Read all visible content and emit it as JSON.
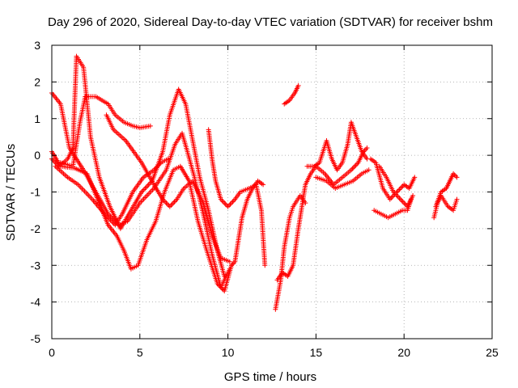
{
  "chart_data": {
    "type": "scatter",
    "title": "Day 296 of 2020, Sidereal Day-to-day VTEC variation (SDTVAR) for receiver bshm",
    "xlabel": "GPS time / hours",
    "ylabel": "SDTVAR / TECUs",
    "xlim": [
      0,
      25
    ],
    "ylim": [
      -5,
      3
    ],
    "x_ticks": [
      "0",
      "5",
      "10",
      "15",
      "20",
      "25"
    ],
    "y_ticks": [
      "-5",
      "-4",
      "-3",
      "-2",
      "-1",
      "0",
      "1",
      "2",
      "3"
    ],
    "grid": true,
    "marker": "plus",
    "color": "#ff0000",
    "series": [
      {
        "segments": [
          [
            [
              0.0,
              1.7
            ],
            [
              0.5,
              1.4
            ],
            [
              1.0,
              0.2
            ],
            [
              1.8,
              -0.4
            ],
            [
              2.5,
              -1.0
            ],
            [
              3.2,
              -1.6
            ],
            [
              3.8,
              -1.9
            ],
            [
              4.3,
              -1.8
            ],
            [
              5.0,
              -1.3
            ],
            [
              5.8,
              -0.9
            ],
            [
              6.5,
              -0.4
            ],
            [
              7.0,
              0.3
            ],
            [
              7.4,
              0.6
            ],
            [
              7.7,
              0.1
            ],
            [
              8.1,
              -0.6
            ],
            [
              8.6,
              -1.6
            ],
            [
              9.1,
              -2.7
            ],
            [
              9.6,
              -3.6
            ],
            [
              10.1,
              -3.1
            ]
          ]
        ]
      },
      {
        "segments": [
          [
            [
              0.0,
              0.1
            ],
            [
              0.5,
              -0.3
            ],
            [
              1.3,
              -0.35
            ],
            [
              2.0,
              -0.5
            ],
            [
              2.6,
              -1.2
            ],
            [
              3.2,
              -1.9
            ],
            [
              3.7,
              -2.2
            ],
            [
              4.1,
              -2.6
            ],
            [
              4.5,
              -3.1
            ],
            [
              4.9,
              -3.0
            ],
            [
              5.4,
              -2.3
            ],
            [
              5.9,
              -1.8
            ],
            [
              6.4,
              -1.0
            ],
            [
              6.9,
              -0.4
            ],
            [
              7.3,
              -0.3
            ],
            [
              7.8,
              -0.7
            ],
            [
              8.3,
              -1.8
            ],
            [
              8.8,
              -2.6
            ],
            [
              9.4,
              -3.5
            ],
            [
              9.8,
              -3.7
            ],
            [
              10.2,
              -3.0
            ]
          ]
        ]
      },
      {
        "segments": [
          [
            [
              0.0,
              -0.1
            ],
            [
              0.4,
              -0.3
            ],
            [
              0.9,
              -0.1
            ],
            [
              1.2,
              0.2
            ],
            [
              1.4,
              2.7
            ],
            [
              1.8,
              2.4
            ],
            [
              2.2,
              0.5
            ],
            [
              2.7,
              -0.6
            ],
            [
              3.3,
              -1.4
            ],
            [
              3.9,
              -2.0
            ],
            [
              4.5,
              -1.5
            ],
            [
              5.1,
              -1.0
            ],
            [
              5.7,
              -0.7
            ],
            [
              6.3,
              0.1
            ],
            [
              6.7,
              1.1
            ],
            [
              7.2,
              1.8
            ],
            [
              7.6,
              1.4
            ],
            [
              8.0,
              0.4
            ],
            [
              8.4,
              -0.6
            ],
            [
              8.9,
              -1.5
            ],
            [
              9.4,
              -2.6
            ],
            [
              9.8,
              -3.3
            ]
          ]
        ]
      },
      {
        "segments": [
          [
            [
              0.5,
              -0.2
            ],
            [
              1.2,
              -0.3
            ],
            [
              1.6,
              0.9
            ],
            [
              1.9,
              1.6
            ],
            [
              2.5,
              1.6
            ],
            [
              3.2,
              1.4
            ],
            [
              3.6,
              1.1
            ],
            [
              4.1,
              0.9
            ],
            [
              4.6,
              0.8
            ],
            [
              5.0,
              0.75
            ],
            [
              5.6,
              0.8
            ]
          ]
        ]
      },
      {
        "segments": [
          [
            [
              3.1,
              1.1
            ],
            [
              3.5,
              0.7
            ],
            [
              4.2,
              0.4
            ],
            [
              5.1,
              -0.2
            ],
            [
              5.8,
              -0.8
            ],
            [
              6.3,
              -1.2
            ],
            [
              6.7,
              -1.4
            ],
            [
              7.1,
              -1.2
            ],
            [
              7.5,
              -0.9
            ],
            [
              8.0,
              -0.7
            ],
            [
              8.6,
              -1.3
            ],
            [
              9.1,
              -2.2
            ],
            [
              9.6,
              -2.8
            ],
            [
              10.1,
              -2.9
            ]
          ]
        ]
      },
      {
        "segments": [
          [
            [
              0.2,
              -0.3
            ],
            [
              0.9,
              -0.6
            ],
            [
              1.5,
              -0.8
            ],
            [
              2.3,
              -1.2
            ],
            [
              3.0,
              -1.6
            ],
            [
              3.6,
              -1.9
            ],
            [
              4.0,
              -1.6
            ],
            [
              4.6,
              -1.0
            ],
            [
              5.2,
              -0.6
            ],
            [
              5.8,
              -0.4
            ],
            [
              6.2,
              -0.2
            ],
            [
              6.6,
              -0.1
            ]
          ]
        ]
      },
      {
        "segments": [
          [
            [
              8.9,
              0.7
            ],
            [
              9.1,
              -0.1
            ],
            [
              9.3,
              -0.7
            ],
            [
              9.6,
              -1.2
            ],
            [
              10.0,
              -1.4
            ],
            [
              10.4,
              -1.2
            ],
            [
              10.7,
              -1.0
            ],
            [
              11.2,
              -0.9
            ],
            [
              11.6,
              -0.8
            ],
            [
              11.9,
              -1.5
            ],
            [
              12.1,
              -3.0
            ]
          ]
        ]
      },
      {
        "segments": [
          [
            [
              12.0,
              -0.8
            ],
            [
              11.7,
              -0.7
            ],
            [
              11.4,
              -0.9
            ],
            [
              11.1,
              -1.2
            ],
            [
              10.8,
              -1.7
            ],
            [
              10.6,
              -2.3
            ],
            [
              10.4,
              -2.9
            ],
            [
              10.2,
              -3.0
            ]
          ]
        ]
      },
      {
        "segments": [
          [
            [
              12.7,
              -4.2
            ],
            [
              13.0,
              -3.4
            ],
            [
              13.2,
              -2.5
            ],
            [
              13.5,
              -1.7
            ],
            [
              13.7,
              -1.4
            ],
            [
              14.1,
              -1.1
            ],
            [
              14.4,
              -1.3
            ]
          ]
        ]
      },
      {
        "segments": [
          [
            [
              12.8,
              -3.4
            ],
            [
              13.1,
              -3.2
            ],
            [
              13.4,
              -3.3
            ],
            [
              13.7,
              -3.0
            ],
            [
              14.0,
              -2.0
            ],
            [
              14.2,
              -1.4
            ],
            [
              14.4,
              -0.8
            ],
            [
              14.7,
              -0.5
            ],
            [
              15.0,
              -0.3
            ],
            [
              15.5,
              -0.5
            ],
            [
              16.0,
              -0.8
            ],
            [
              16.5,
              -0.6
            ],
            [
              17.0,
              -0.4
            ],
            [
              17.4,
              -0.2
            ],
            [
              17.7,
              0.1
            ],
            [
              17.9,
              0.2
            ]
          ]
        ]
      },
      {
        "segments": [
          [
            [
              14.5,
              -0.3
            ],
            [
              14.9,
              -0.3
            ],
            [
              15.2,
              -0.2
            ],
            [
              15.6,
              0.4
            ],
            [
              15.9,
              -0.1
            ],
            [
              16.2,
              -0.4
            ],
            [
              16.5,
              -0.2
            ],
            [
              16.8,
              0.3
            ],
            [
              17.0,
              0.9
            ],
            [
              17.3,
              0.5
            ],
            [
              17.6,
              0.1
            ],
            [
              17.9,
              -0.1
            ]
          ]
        ]
      },
      {
        "segments": [
          [
            [
              13.2,
              1.4
            ],
            [
              13.5,
              1.5
            ],
            [
              13.8,
              1.7
            ],
            [
              14.0,
              1.9
            ]
          ]
        ]
      },
      {
        "segments": [
          [
            [
              15.0,
              -0.6
            ],
            [
              15.6,
              -0.7
            ],
            [
              16.1,
              -0.9
            ],
            [
              16.6,
              -0.8
            ],
            [
              17.1,
              -0.7
            ],
            [
              17.6,
              -0.5
            ],
            [
              18.0,
              -0.4
            ]
          ]
        ]
      },
      {
        "segments": [
          [
            [
              18.1,
              -0.1
            ],
            [
              18.4,
              -0.2
            ],
            [
              18.8,
              -0.9
            ],
            [
              19.2,
              -1.2
            ],
            [
              19.6,
              -1.0
            ],
            [
              20.0,
              -0.8
            ],
            [
              20.3,
              -0.9
            ],
            [
              20.6,
              -0.6
            ]
          ]
        ]
      },
      {
        "segments": [
          [
            [
              18.6,
              -0.3
            ],
            [
              19.0,
              -0.6
            ],
            [
              19.4,
              -1.0
            ],
            [
              19.8,
              -1.2
            ],
            [
              20.2,
              -1.4
            ],
            [
              20.5,
              -1.1
            ]
          ]
        ]
      },
      {
        "segments": [
          [
            [
              18.3,
              -1.5
            ],
            [
              18.7,
              -1.6
            ],
            [
              19.1,
              -1.7
            ],
            [
              19.5,
              -1.6
            ],
            [
              19.9,
              -1.5
            ],
            [
              20.2,
              -1.5
            ],
            [
              20.4,
              -1.2
            ]
          ]
        ]
      },
      {
        "segments": [
          [
            [
              21.7,
              -1.7
            ],
            [
              21.9,
              -1.3
            ],
            [
              22.1,
              -1.1
            ],
            [
              22.5,
              -1.4
            ],
            [
              22.8,
              -1.5
            ],
            [
              23.0,
              -1.2
            ]
          ]
        ]
      },
      {
        "segments": [
          [
            [
              21.8,
              -1.4
            ],
            [
              22.1,
              -1.0
            ],
            [
              22.4,
              -0.9
            ],
            [
              22.6,
              -0.7
            ],
            [
              22.8,
              -0.5
            ],
            [
              23.0,
              -0.6
            ]
          ]
        ]
      }
    ]
  }
}
